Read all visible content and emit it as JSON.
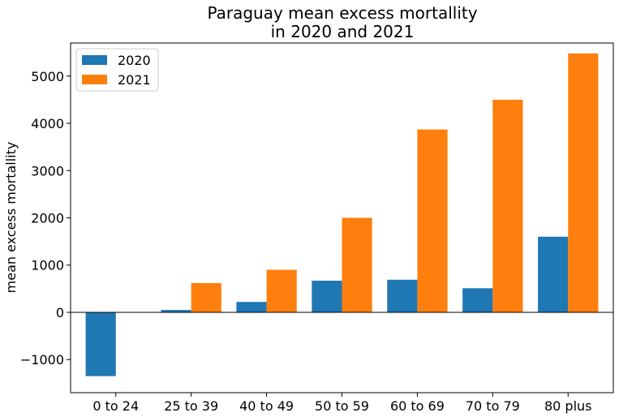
{
  "chart_data": {
    "type": "bar",
    "title_lines": [
      "Paraguay mean excess mortallity",
      "in 2020 and 2021"
    ],
    "xlabel": "",
    "ylabel": "mean excess mortallity",
    "categories": [
      "0 to 24",
      "25 to 39",
      "40 to 49",
      "50 to 59",
      "60 to 69",
      "70 to 79",
      "80 plus"
    ],
    "series": [
      {
        "name": "2020",
        "color": "#1f77b4",
        "values": [
          -1350,
          50,
          220,
          670,
          690,
          510,
          1600
        ]
      },
      {
        "name": "2021",
        "color": "#ff7f0e",
        "values": [
          0,
          620,
          900,
          2000,
          3870,
          4500,
          5480
        ]
      }
    ],
    "ylim": [
      -1700,
      5700
    ],
    "yticks": [
      -1000,
      0,
      1000,
      2000,
      3000,
      4000,
      5000
    ],
    "ytick_labels": [
      "−1000",
      "0",
      "1000",
      "2000",
      "3000",
      "4000",
      "5000"
    ],
    "zero_line": true,
    "grid": false,
    "legend_position": "upper-left"
  }
}
